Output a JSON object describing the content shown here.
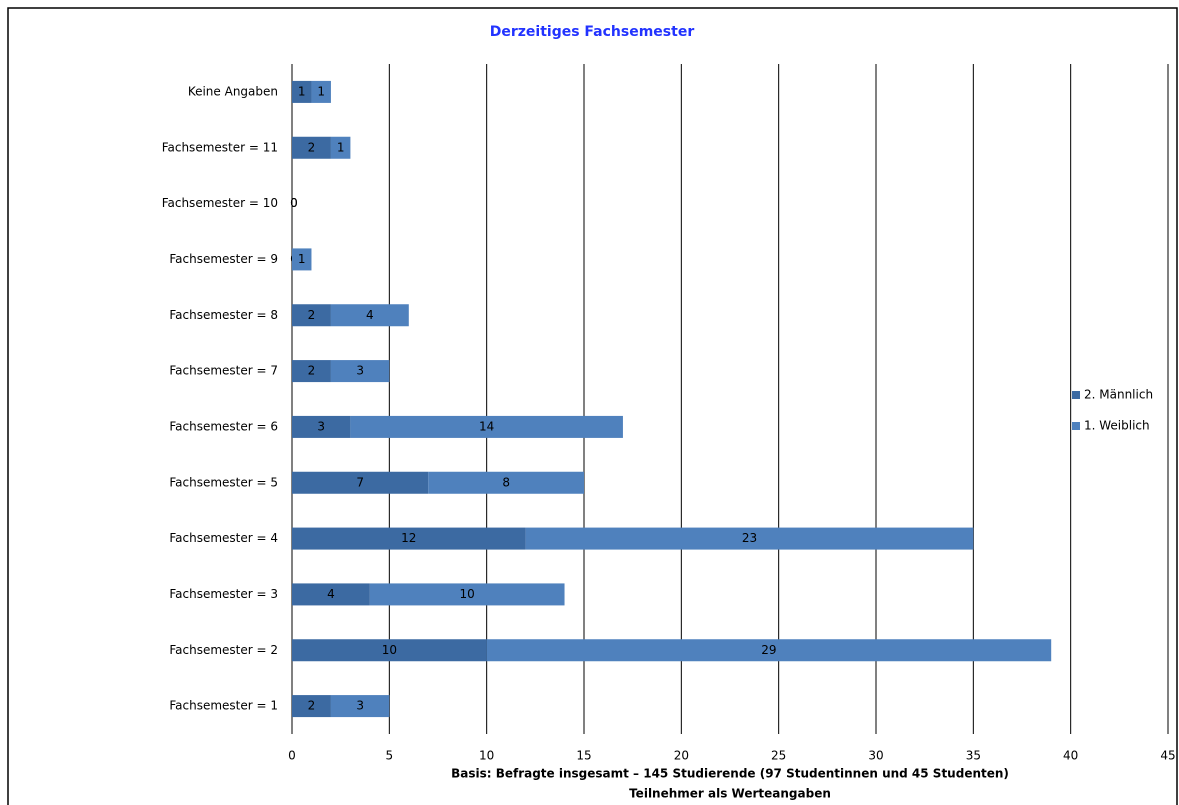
{
  "chart_data": {
    "type": "stacked_barh",
    "title": "Derzeitiges Fachsemester",
    "categories": [
      "Keine Angaben",
      "Fachsemester = 11",
      "Fachsemester = 10",
      "Fachsemester = 9",
      "Fachsemester = 8",
      "Fachsemester = 7",
      "Fachsemester = 6",
      "Fachsemester = 5",
      "Fachsemester = 4",
      "Fachsemester = 3",
      "Fachsemester = 2",
      "Fachsemester = 1"
    ],
    "series": [
      {
        "name": "2. Männlich",
        "color": "#3c6aa2",
        "values": [
          1,
          2,
          0,
          0,
          2,
          2,
          3,
          7,
          12,
          4,
          10,
          2
        ]
      },
      {
        "name": "1. Weiblich",
        "color": "#4f81bd",
        "values": [
          1,
          1,
          0,
          1,
          4,
          3,
          14,
          8,
          23,
          10,
          29,
          3
        ]
      }
    ],
    "xlim": [
      0,
      45
    ],
    "xticks": [
      0,
      5,
      10,
      15,
      20,
      25,
      30,
      35,
      40,
      45
    ],
    "grid": true,
    "legend": "right",
    "footnotes": [
      "Basis:  Befragte insgesamt – 145 Studierende (97 Studentinnen und 45 Studenten)",
      "Teilnehmer als Werteangaben"
    ]
  }
}
